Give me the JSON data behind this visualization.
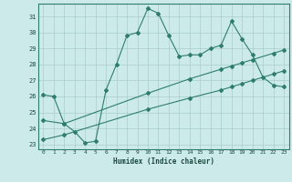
{
  "title": "",
  "xlabel": "Humidex (Indice chaleur)",
  "ylabel": "",
  "background_color": "#cceaea",
  "line_color": "#2e7d6e",
  "grid_color": "#aacccc",
  "xmin": -0.5,
  "xmax": 23.5,
  "ymin": 22.7,
  "ymax": 31.8,
  "yticks": [
    23,
    24,
    25,
    26,
    27,
    28,
    29,
    30,
    31
  ],
  "xticks": [
    0,
    1,
    2,
    3,
    4,
    5,
    6,
    7,
    8,
    9,
    10,
    11,
    12,
    13,
    14,
    15,
    16,
    17,
    18,
    19,
    20,
    21,
    22,
    23
  ],
  "line1_x": [
    0,
    1,
    2,
    3,
    4,
    5,
    6,
    7,
    8,
    9,
    10,
    11,
    12,
    13,
    14,
    15,
    16,
    17,
    18,
    19,
    20,
    21,
    22,
    23
  ],
  "line1_y": [
    26.1,
    26.0,
    24.3,
    23.8,
    23.1,
    23.2,
    26.4,
    28.0,
    29.8,
    30.0,
    31.5,
    31.2,
    29.8,
    28.5,
    28.6,
    28.6,
    29.0,
    29.2,
    30.7,
    29.6,
    28.6,
    27.2,
    26.7,
    26.6
  ],
  "line2_x": [
    0,
    2,
    10,
    14,
    17,
    18,
    19,
    20,
    22,
    23
  ],
  "line2_y": [
    24.5,
    24.3,
    26.2,
    27.1,
    27.7,
    27.9,
    28.1,
    28.3,
    28.7,
    28.9
  ],
  "line3_x": [
    0,
    2,
    10,
    14,
    17,
    18,
    19,
    20,
    22,
    23
  ],
  "line3_y": [
    23.3,
    23.6,
    25.2,
    25.9,
    26.4,
    26.6,
    26.8,
    27.0,
    27.4,
    27.6
  ]
}
